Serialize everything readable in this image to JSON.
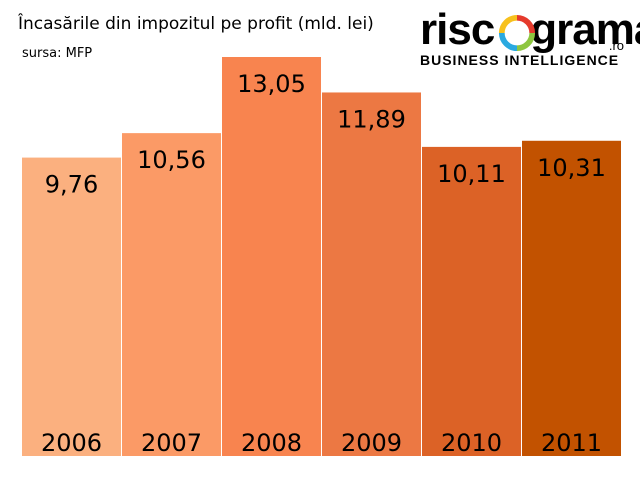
{
  "header": {
    "title": "Încasările din impozitul pe profit (mld. lei)",
    "source": "sursa: MFP"
  },
  "logo": {
    "word_left": "risc",
    "word_right": "grama",
    "tld": ".ro",
    "tagline": "BUSINESS INTELLIGENCE"
  },
  "chart_data": {
    "type": "bar",
    "title": "Încasările din impozitul pe profit (mld. lei)",
    "xlabel": "",
    "ylabel": "",
    "categories": [
      "2006",
      "2007",
      "2008",
      "2009",
      "2010",
      "2011"
    ],
    "values": [
      9.76,
      10.56,
      13.05,
      11.89,
      10.11,
      10.31
    ],
    "labels": [
      "9,76",
      "10,56",
      "13,05",
      "11,89",
      "10,11",
      "10,31"
    ],
    "colors": [
      "#fbb07f",
      "#fb9a66",
      "#f8844f",
      "#ec7843",
      "#dc6226",
      "#c25200"
    ],
    "ylim": [
      0,
      13.05
    ],
    "grid": false
  }
}
